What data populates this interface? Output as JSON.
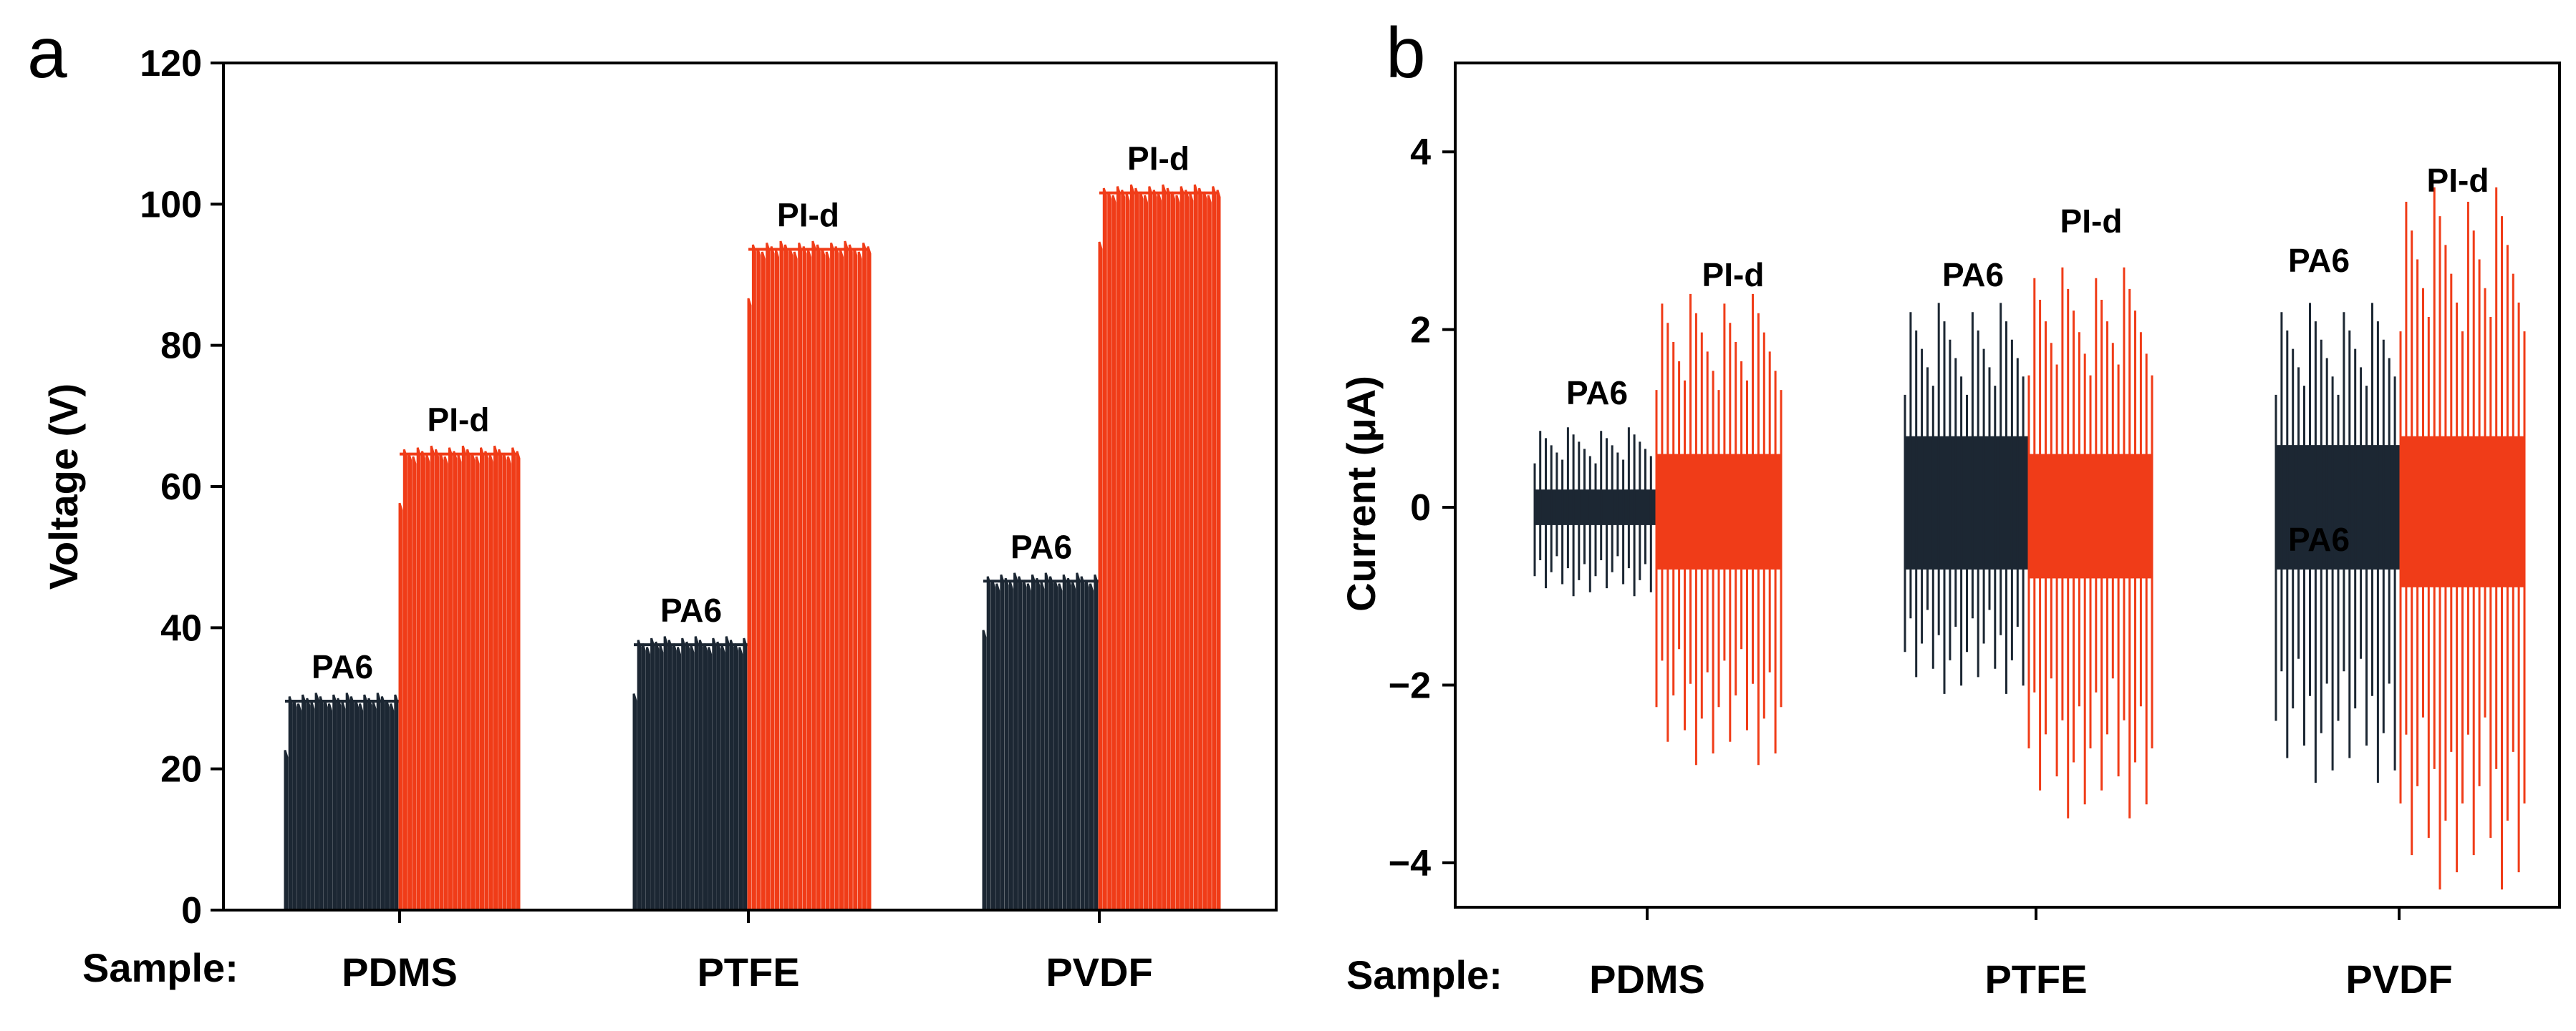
{
  "colors": {
    "PA6": "#1c2733",
    "PI-d": "#f03c18"
  },
  "chart_data": [
    {
      "panel": "a",
      "type": "bar",
      "subtype": "voltage-waveform",
      "title": "",
      "xlabel": "Sample:",
      "ylabel": "Voltage (V)",
      "ylim": [
        0,
        120
      ],
      "yticks": [
        0,
        20,
        40,
        60,
        80,
        100,
        120
      ],
      "categories": [
        "PDMS",
        "PTFE",
        "PVDF"
      ],
      "series": [
        {
          "name": "PA6",
          "label": "PA6",
          "values": [
            30,
            38,
            47
          ]
        },
        {
          "name": "PI-d",
          "label": "PI-d",
          "values": [
            65,
            94,
            102
          ]
        }
      ]
    },
    {
      "panel": "b",
      "type": "bar",
      "subtype": "current-waveform",
      "title": "",
      "xlabel": "Sample:",
      "ylabel": "Current (μA)",
      "ylim": [
        -4.5,
        5
      ],
      "yticks": [
        -4,
        -2,
        0,
        2,
        4
      ],
      "yticklabels": [
        "−4",
        "−2",
        "0",
        "2",
        "4"
      ],
      "categories": [
        "PDMS",
        "PTFE",
        "PVDF"
      ],
      "series": [
        {
          "name": "PA6",
          "label": "PA6",
          "core_range": [
            [
              -0.2,
              0.2
            ],
            [
              -0.7,
              0.8
            ],
            [
              -0.7,
              0.7
            ]
          ],
          "peak_range": [
            [
              -1.0,
              0.9
            ],
            [
              -2.1,
              2.3
            ],
            [
              -3.1,
              2.3
            ]
          ]
        },
        {
          "name": "PI-d",
          "label": "PI-d",
          "core_range": [
            [
              -0.7,
              0.6
            ],
            [
              -0.8,
              0.6
            ],
            [
              -0.9,
              0.8
            ]
          ],
          "peak_range": [
            [
              -2.9,
              2.4
            ],
            [
              -3.5,
              2.7
            ],
            [
              -4.3,
              3.6
            ]
          ]
        }
      ],
      "annotations": [
        "PA6",
        "PI-d",
        "PA6",
        "PI-d",
        "PA6",
        "PA6",
        "PI-d"
      ]
    }
  ]
}
